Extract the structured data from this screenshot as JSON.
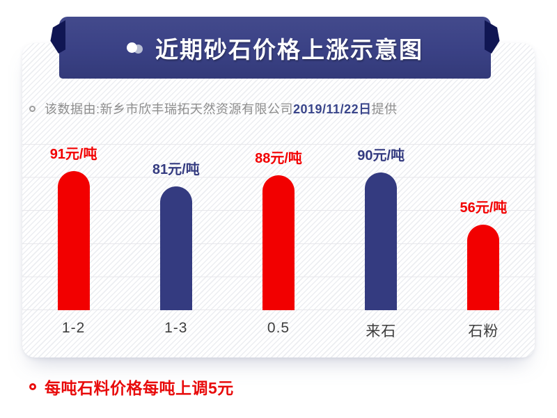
{
  "page": {
    "title": "近期砂石价格上涨示意图",
    "subtitle": {
      "prefix": "该数据由:新乡市欣丰瑞拓天然资源有限公司",
      "date": "2019/11/22日",
      "suffix": "提供"
    },
    "footnote": "每吨石料价格每吨上调5元"
  },
  "colors": {
    "banner": "#3a4185",
    "banner_fold": "#101653",
    "bar_red": "#f20000",
    "bar_blue": "#343b80",
    "date_text": "#39458a",
    "subtitle_text": "#8d8d8d",
    "axis_label": "#3d3d3d",
    "footnote_text": "#e80b0b",
    "gridline": "#e7e7eb"
  },
  "chart_data": {
    "type": "bar",
    "title": "近期砂石价格上涨示意图",
    "categories": [
      "1-2",
      "1-3",
      "0.5",
      "来石",
      "石粉"
    ],
    "values": [
      91,
      81,
      88,
      90,
      56
    ],
    "value_labels": [
      "91元/吨",
      "81元/吨",
      "88元/吨",
      "90元/吨",
      "56元/吨"
    ],
    "bar_colors": [
      "#f20000",
      "#343b80",
      "#f20000",
      "#343b80",
      "#f20000"
    ],
    "unit": "元/吨",
    "xlabel": "",
    "ylabel": "",
    "ylim": [
      0,
      100
    ],
    "grid": "horizontal",
    "legend": "none"
  }
}
